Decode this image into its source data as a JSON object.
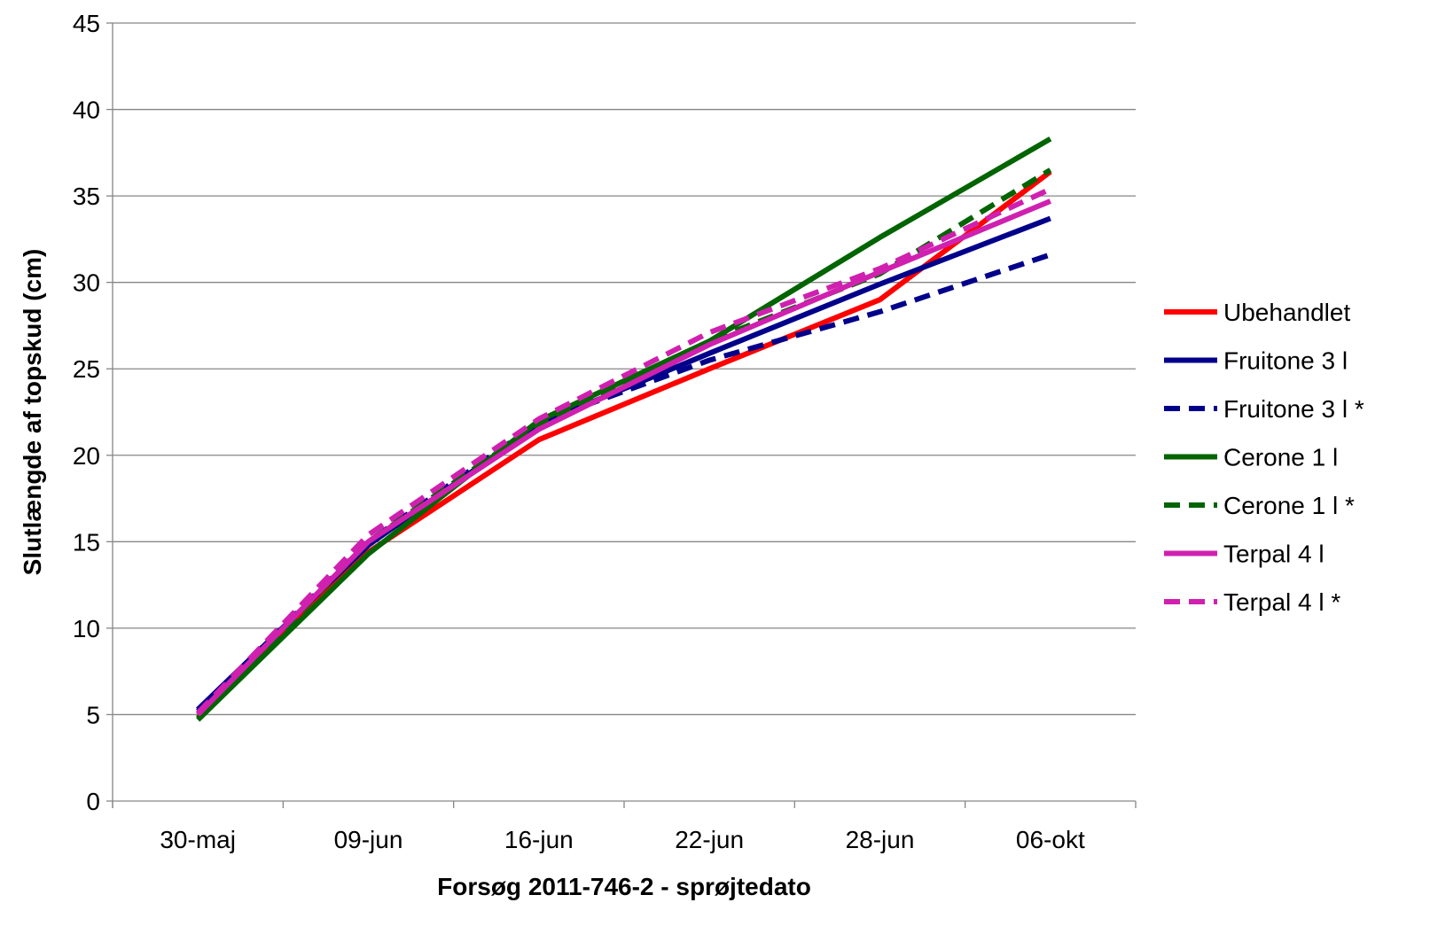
{
  "chart_data": {
    "type": "line",
    "title": "",
    "xlabel": "Forsøg 2011-746-2 - sprøjtedato",
    "ylabel": "Slutlængde af topskud (cm)",
    "categories": [
      "30-maj",
      "09-jun",
      "16-jun",
      "22-jun",
      "28-jun",
      "06-okt"
    ],
    "ylim": [
      0,
      45
    ],
    "yticks": [
      0,
      5,
      10,
      15,
      20,
      25,
      30,
      35,
      40,
      45
    ],
    "grid": true,
    "legend_position": "right",
    "series": [
      {
        "name": "Ubehandlet",
        "color": "#ff0000",
        "dashed": false,
        "values": [
          5.0,
          14.4,
          20.9,
          25.0,
          29.0,
          36.4
        ]
      },
      {
        "name": "Fruitone 3 l",
        "color": "#00008b",
        "dashed": false,
        "values": [
          5.3,
          14.8,
          21.8,
          25.9,
          29.9,
          33.7
        ]
      },
      {
        "name": "Fruitone 3 l *",
        "color": "#00008b",
        "dashed": true,
        "values": [
          5.2,
          15.0,
          21.9,
          25.5,
          28.3,
          31.6
        ]
      },
      {
        "name": "Cerone 1 l",
        "color": "#006400",
        "dashed": false,
        "values": [
          4.7,
          14.3,
          22.0,
          26.6,
          32.6,
          38.3
        ]
      },
      {
        "name": "Cerone 1 l *",
        "color": "#006400",
        "dashed": true,
        "values": [
          4.8,
          15.0,
          21.8,
          26.6,
          30.5,
          36.5
        ]
      },
      {
        "name": "Terpal 4 l",
        "color": "#d020b0",
        "dashed": false,
        "values": [
          5.0,
          15.0,
          21.5,
          26.4,
          30.6,
          34.7
        ]
      },
      {
        "name": "Terpal 4 l *",
        "color": "#d020b0",
        "dashed": true,
        "values": [
          5.1,
          15.4,
          22.1,
          27.1,
          30.8,
          35.4
        ]
      }
    ]
  }
}
